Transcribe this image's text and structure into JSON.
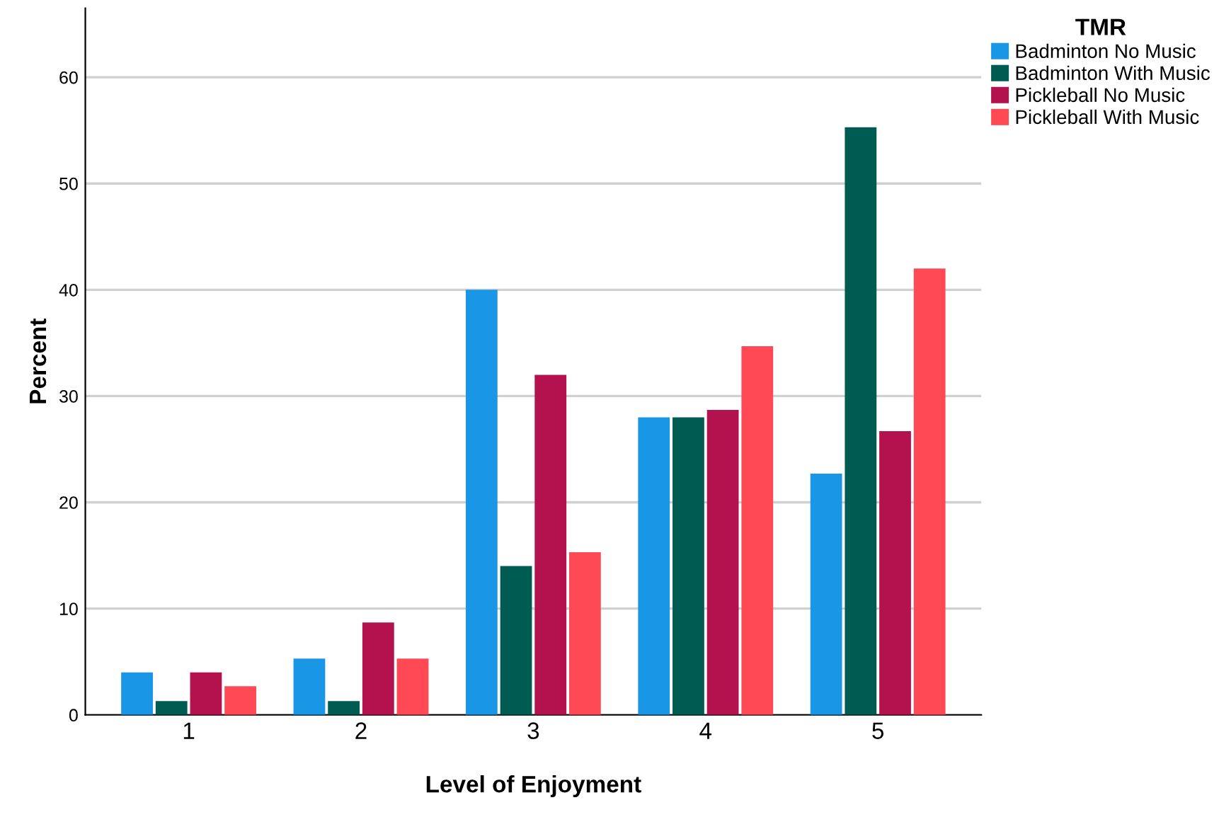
{
  "chart_data": {
    "type": "bar",
    "xlabel": "Level of Enjoyment",
    "ylabel": "Percent",
    "legend_title": "TMR",
    "legend": "top right",
    "categories": [
      "1",
      "2",
      "3",
      "4",
      "5"
    ],
    "series": [
      {
        "name": "Badminton No Music",
        "color": "#1a96e6",
        "values": [
          4.0,
          5.3,
          40.0,
          28.0,
          22.7
        ]
      },
      {
        "name": "Badminton With Music",
        "color": "#005b52",
        "values": [
          1.3,
          1.3,
          14.0,
          28.0,
          55.3
        ]
      },
      {
        "name": "Pickleball No Music",
        "color": "#b3124f",
        "values": [
          4.0,
          8.7,
          32.0,
          28.7,
          26.7
        ]
      },
      {
        "name": "Pickleball With Music",
        "color": "#ff4a55",
        "values": [
          2.7,
          5.3,
          15.3,
          34.7,
          42.0
        ]
      }
    ],
    "ylim": [
      0,
      66.5
    ],
    "yticks": [
      0,
      10,
      20,
      30,
      40,
      50,
      60
    ],
    "grid": "y"
  }
}
